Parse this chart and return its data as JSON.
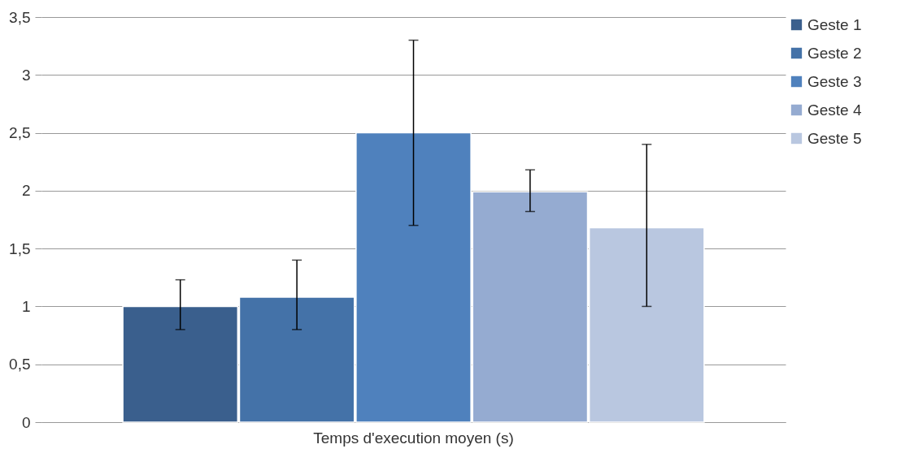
{
  "chart_data": {
    "type": "bar",
    "categories": [
      "Temps d'execution moyen (s)"
    ],
    "series": [
      {
        "name": "Geste 1",
        "color": "#3a5f8d",
        "values": [
          1.0
        ],
        "errors": [
          [
            0.8,
            1.23
          ]
        ]
      },
      {
        "name": "Geste 2",
        "color": "#4472a8",
        "values": [
          1.08
        ],
        "errors": [
          [
            0.8,
            1.4
          ]
        ]
      },
      {
        "name": "Geste 3",
        "color": "#4f81bd",
        "values": [
          2.5
        ],
        "errors": [
          [
            1.7,
            3.3
          ]
        ]
      },
      {
        "name": "Geste 4",
        "color": "#95abd1",
        "values": [
          1.99
        ],
        "errors": [
          [
            1.82,
            2.18
          ]
        ]
      },
      {
        "name": "Geste 5",
        "color": "#b9c7e0",
        "values": [
          1.68
        ],
        "errors": [
          [
            1.0,
            2.4
          ]
        ]
      }
    ],
    "ylim": [
      0,
      3.5
    ],
    "yticks": [
      0,
      {
        "value": 0.5,
        "label": "0,5"
      },
      1,
      {
        "value": 1.5,
        "label": "1,5"
      },
      2,
      {
        "value": 2.5,
        "label": "2,5"
      },
      3,
      {
        "value": 3.5,
        "label": "3,5"
      }
    ],
    "grid": "y",
    "legend": "right"
  }
}
